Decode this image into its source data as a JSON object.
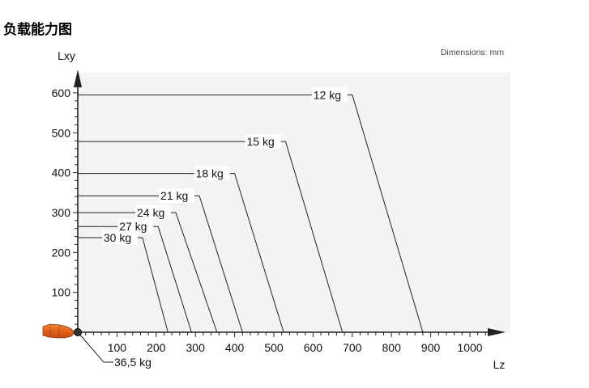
{
  "page": {
    "title": "负载能力图"
  },
  "chart_data": {
    "type": "line",
    "ylabel": "Lxy",
    "xlabel": "Lz",
    "units_note": "Dimensions: mm",
    "xlim": [
      0,
      1050
    ],
    "ylim": [
      0,
      640
    ],
    "x_ticks": [
      100,
      200,
      300,
      400,
      500,
      600,
      700,
      800,
      900,
      1000
    ],
    "y_ticks": [
      100,
      200,
      300,
      400,
      500,
      600
    ],
    "series": [
      {
        "name": "12 kg",
        "values": [
          [
            0,
            595
          ],
          [
            700,
            595
          ],
          [
            880,
            0
          ]
        ]
      },
      {
        "name": "15 kg",
        "values": [
          [
            0,
            478
          ],
          [
            530,
            478
          ],
          [
            675,
            0
          ]
        ]
      },
      {
        "name": "18 kg",
        "values": [
          [
            0,
            398
          ],
          [
            400,
            398
          ],
          [
            525,
            0
          ]
        ]
      },
      {
        "name": "21 kg",
        "values": [
          [
            0,
            342
          ],
          [
            310,
            342
          ],
          [
            420,
            0
          ]
        ]
      },
      {
        "name": "24 kg",
        "values": [
          [
            0,
            300
          ],
          [
            250,
            300
          ],
          [
            355,
            0
          ]
        ]
      },
      {
        "name": "27 kg",
        "values": [
          [
            0,
            265
          ],
          [
            205,
            265
          ],
          [
            290,
            0
          ]
        ]
      },
      {
        "name": "30 kg",
        "values": [
          [
            0,
            237
          ],
          [
            165,
            237
          ],
          [
            230,
            0
          ]
        ]
      },
      {
        "name": "36,5 kg",
        "values": [
          [
            0,
            0
          ]
        ]
      }
    ]
  }
}
